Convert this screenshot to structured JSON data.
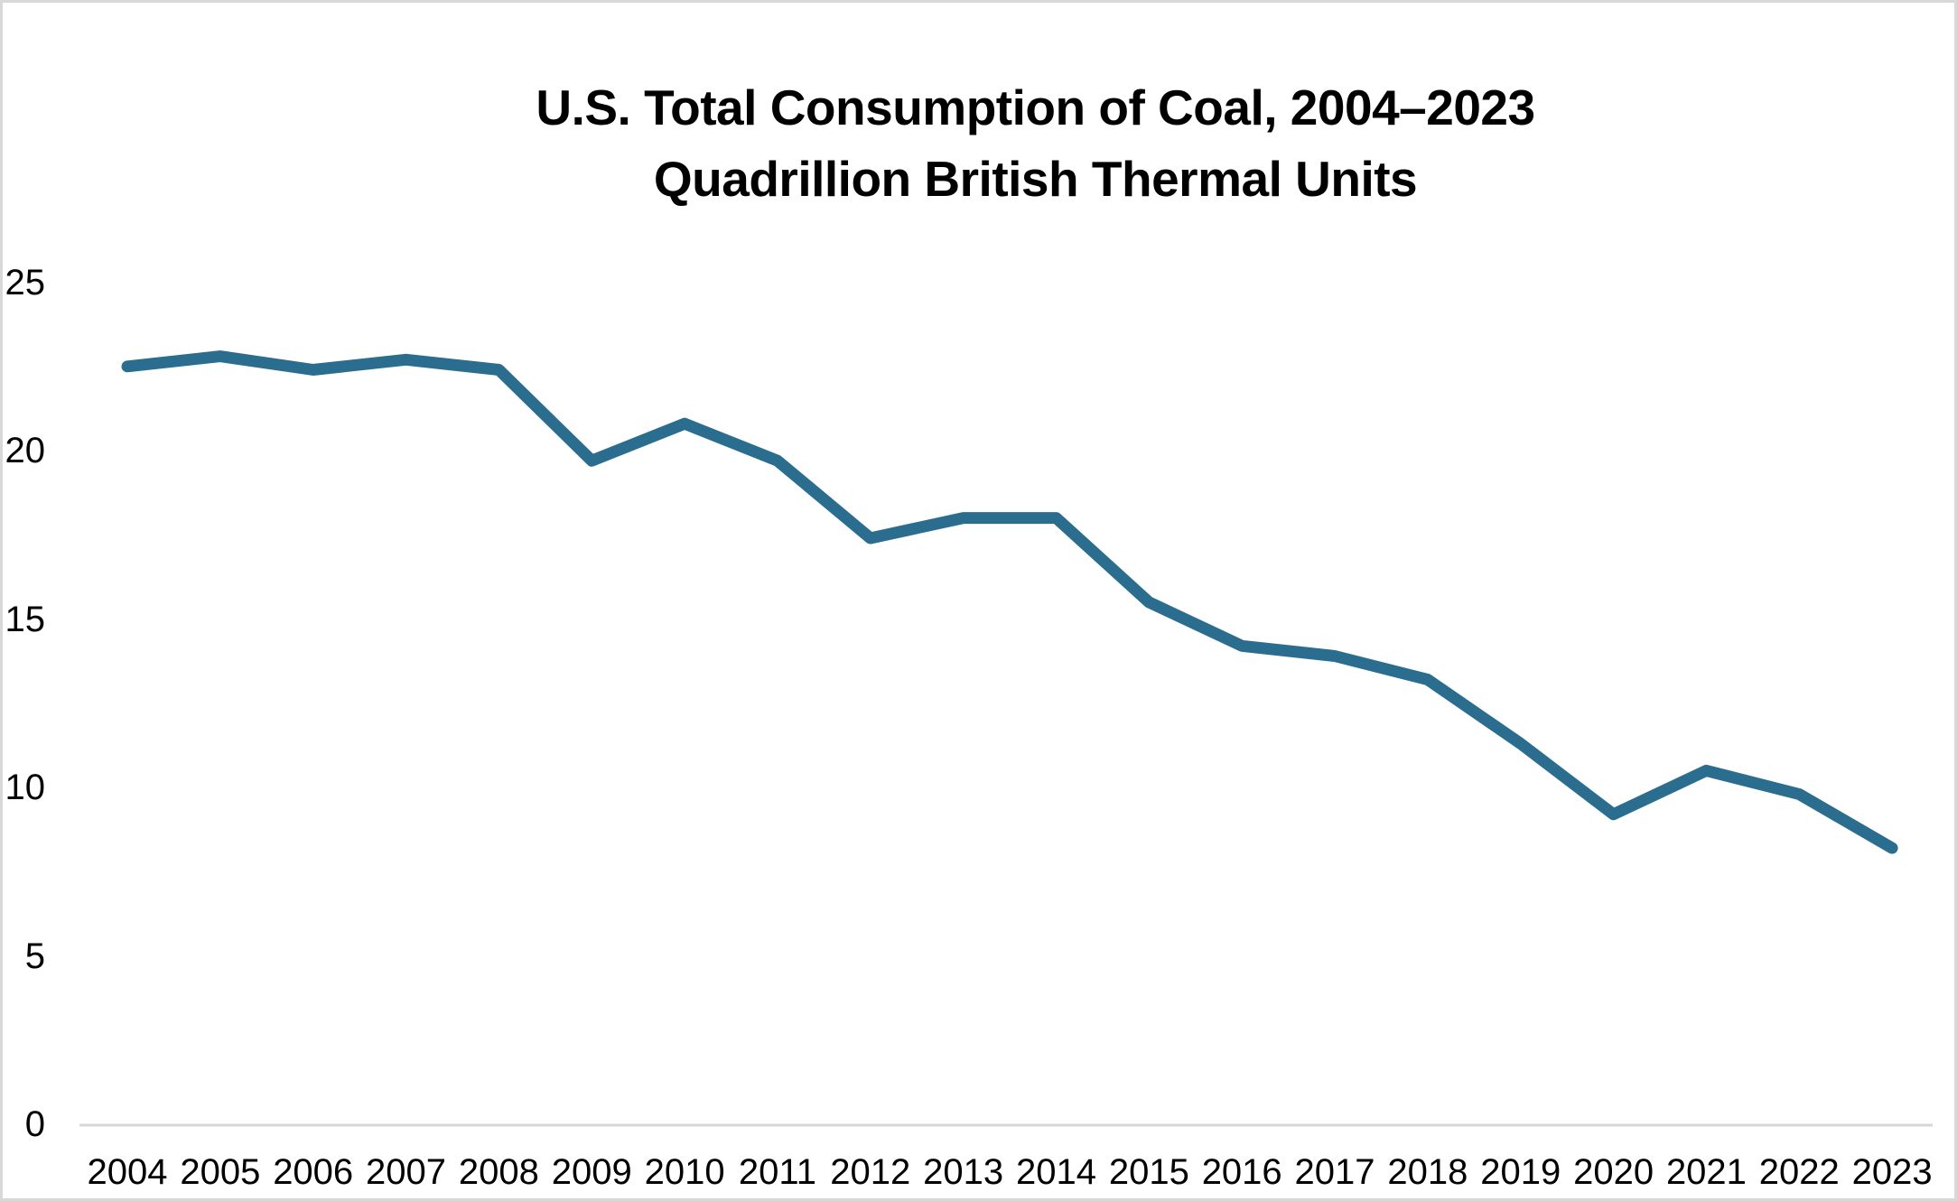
{
  "chart_data": {
    "type": "line",
    "title": "U.S. Total Consumption of Coal, 2004–2023",
    "subtitle": "Quadrillion British Thermal Units",
    "series_name": "U.S. total coal consumption",
    "x": [
      2004,
      2005,
      2006,
      2007,
      2008,
      2009,
      2010,
      2011,
      2012,
      2013,
      2014,
      2015,
      2016,
      2017,
      2018,
      2019,
      2020,
      2021,
      2022,
      2023
    ],
    "values": [
      22.5,
      22.8,
      22.4,
      22.7,
      22.4,
      19.7,
      20.8,
      19.7,
      17.4,
      18.0,
      18.0,
      15.5,
      14.2,
      13.9,
      13.2,
      11.3,
      9.2,
      10.5,
      9.8,
      8.2
    ],
    "xlabel": "",
    "ylabel": "",
    "ylim": [
      0,
      25
    ],
    "yticks": [
      0,
      5,
      10,
      15,
      20,
      25
    ],
    "grid": false,
    "legend_position": "none",
    "line_color": "#2A6D8E",
    "axis_color": "#D6D6D6",
    "text_color": "#000000",
    "frame_color": "#D8D8D8"
  }
}
